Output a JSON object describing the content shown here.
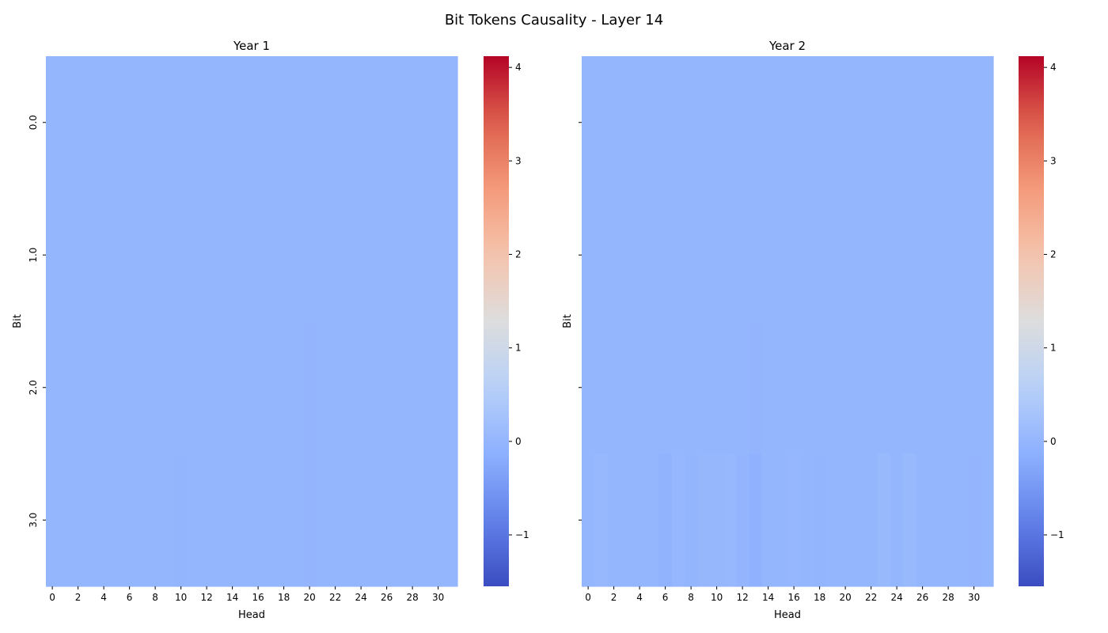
{
  "title": "Bit Tokens Causality - Layer 14",
  "colormap": {
    "name": "coolwarm",
    "low_color": "#3b4cc0",
    "mid_color": "#dddddd",
    "high_color": "#b40426"
  },
  "chart_data": [
    {
      "type": "heatmap",
      "title": "Year 1",
      "xlabel": "Head",
      "ylabel": "Bit",
      "x_tick_labels": [
        "0",
        "2",
        "4",
        "6",
        "8",
        "10",
        "12",
        "14",
        "16",
        "18",
        "20",
        "22",
        "24",
        "26",
        "28",
        "30"
      ],
      "y_tick_labels": [
        "0.0",
        "1.0",
        "2.0",
        "3.0"
      ],
      "rows": [
        "0.0",
        "1.0",
        "2.0",
        "3.0"
      ],
      "n_columns": 32,
      "values": [
        [
          -0.01,
          -0.01,
          -0.01,
          -0.01,
          -0.01,
          -0.01,
          -0.01,
          -0.01,
          -0.01,
          -0.01,
          -0.01,
          -0.01,
          -0.01,
          -0.01,
          -0.01,
          -0.01,
          -0.01,
          -0.01,
          -0.01,
          -0.01,
          -0.01,
          -0.01,
          -0.01,
          -0.01,
          -0.01,
          -0.01,
          -0.01,
          -0.01,
          -0.01,
          -0.01,
          -0.01,
          -0.01
        ],
        [
          -0.01,
          -0.01,
          -0.01,
          -0.01,
          -0.01,
          -0.01,
          -0.01,
          -0.01,
          -0.01,
          -0.01,
          -0.01,
          -0.01,
          -0.01,
          -0.01,
          -0.01,
          -0.01,
          -0.01,
          -0.01,
          -0.01,
          -0.01,
          -0.01,
          -0.01,
          -0.01,
          -0.01,
          -0.01,
          -0.01,
          -0.01,
          -0.01,
          -0.01,
          -0.01,
          -0.01,
          -0.01
        ],
        [
          -0.01,
          -0.01,
          -0.01,
          -0.01,
          -0.01,
          -0.01,
          -0.01,
          -0.01,
          -0.01,
          -0.01,
          -0.01,
          -0.01,
          -0.01,
          -0.01,
          -0.01,
          -0.01,
          -0.01,
          -0.01,
          -0.01,
          -0.01,
          -0.02,
          -0.01,
          -0.01,
          -0.01,
          -0.01,
          -0.01,
          -0.01,
          -0.01,
          -0.01,
          -0.01,
          -0.01,
          -0.01
        ],
        [
          -0.01,
          -0.01,
          -0.01,
          -0.01,
          -0.01,
          -0.01,
          -0.01,
          -0.01,
          -0.01,
          -0.01,
          -0.03,
          -0.01,
          -0.01,
          -0.01,
          -0.01,
          -0.01,
          -0.01,
          -0.01,
          -0.01,
          -0.01,
          -0.02,
          -0.01,
          -0.01,
          -0.01,
          -0.01,
          -0.01,
          -0.01,
          -0.01,
          -0.01,
          -0.01,
          -0.01,
          -0.01
        ]
      ],
      "colorbar": {
        "min": -1.55,
        "max": 4.12,
        "ticks": [
          -1,
          0,
          1,
          2,
          3,
          4
        ]
      }
    },
    {
      "type": "heatmap",
      "title": "Year 2",
      "xlabel": "Head",
      "ylabel": "Bit",
      "x_tick_labels": [
        "0",
        "2",
        "4",
        "6",
        "8",
        "10",
        "12",
        "14",
        "16",
        "18",
        "20",
        "22",
        "24",
        "26",
        "28",
        "30"
      ],
      "y_tick_labels": [],
      "rows": [
        "0.0",
        "1.0",
        "2.0",
        "3.0"
      ],
      "n_columns": 32,
      "values": [
        [
          -0.01,
          -0.01,
          -0.01,
          -0.01,
          -0.01,
          -0.01,
          -0.01,
          -0.01,
          -0.01,
          -0.01,
          -0.01,
          -0.01,
          -0.01,
          -0.01,
          -0.01,
          -0.01,
          -0.01,
          -0.01,
          -0.01,
          -0.01,
          -0.01,
          -0.01,
          -0.01,
          -0.01,
          -0.01,
          -0.01,
          -0.01,
          -0.01,
          -0.01,
          -0.01,
          -0.01,
          -0.01
        ],
        [
          -0.01,
          -0.01,
          -0.01,
          -0.01,
          -0.01,
          -0.01,
          -0.01,
          -0.01,
          -0.01,
          -0.01,
          -0.01,
          -0.01,
          -0.01,
          -0.01,
          -0.01,
          -0.01,
          -0.01,
          -0.01,
          -0.01,
          -0.01,
          -0.01,
          -0.01,
          -0.01,
          -0.01,
          -0.01,
          -0.01,
          -0.01,
          -0.01,
          -0.01,
          -0.01,
          -0.01,
          -0.01
        ],
        [
          -0.01,
          -0.01,
          -0.01,
          -0.01,
          -0.01,
          -0.01,
          -0.01,
          -0.01,
          -0.01,
          -0.01,
          -0.01,
          -0.01,
          -0.01,
          -0.02,
          -0.01,
          -0.01,
          -0.01,
          -0.01,
          -0.01,
          -0.01,
          -0.01,
          -0.01,
          -0.01,
          -0.01,
          -0.01,
          -0.01,
          -0.01,
          -0.01,
          -0.01,
          -0.01,
          -0.01,
          -0.01
        ],
        [
          -0.01,
          0.04,
          -0.01,
          -0.01,
          -0.01,
          -0.01,
          -0.06,
          0.01,
          -0.03,
          0.03,
          0.03,
          0.05,
          -0.02,
          -0.09,
          -0.01,
          -0.01,
          0.01,
          -0.01,
          -0.03,
          -0.01,
          -0.01,
          -0.01,
          -0.01,
          0.06,
          -0.01,
          0.06,
          -0.01,
          -0.01,
          -0.01,
          -0.01,
          -0.02,
          -0.01
        ]
      ],
      "colorbar": {
        "min": -1.55,
        "max": 4.12,
        "ticks": [
          -1,
          0,
          1,
          2,
          3,
          4
        ]
      }
    }
  ]
}
